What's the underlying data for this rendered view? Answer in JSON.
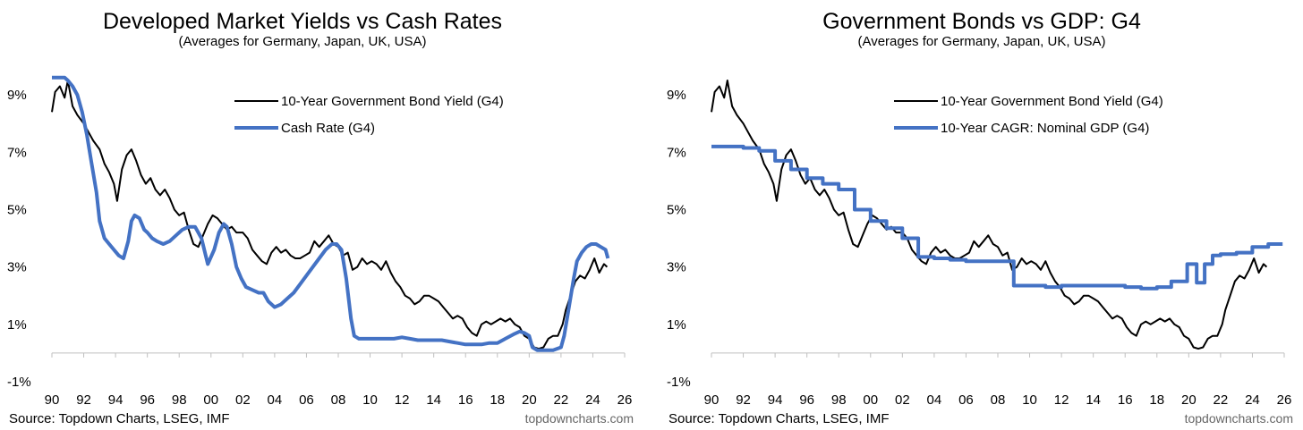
{
  "colors": {
    "bond": "#000000",
    "blue": "#4472C4",
    "axis": "#BFBFBF"
  },
  "chart_data": [
    {
      "type": "line",
      "title": "Developed Market Yields vs Cash Rates",
      "subtitle": "(Averages for Germany, Japan, UK, USA)",
      "source": "Source: Topdown Charts, LSEG, IMF",
      "brand": "topdowncharts.com",
      "ylim": [
        -1,
        10
      ],
      "xlim": [
        1990,
        2026
      ],
      "y_ticks": [
        {
          "v": 9,
          "label": "9%"
        },
        {
          "v": 7,
          "label": "7%"
        },
        {
          "v": 5,
          "label": "5%"
        },
        {
          "v": 3,
          "label": "3%"
        },
        {
          "v": 1,
          "label": "1%"
        },
        {
          "v": -1,
          "label": "-1%"
        }
      ],
      "x_ticks": [
        {
          "v": 1990,
          "label": "90"
        },
        {
          "v": 1992,
          "label": "92"
        },
        {
          "v": 1994,
          "label": "94"
        },
        {
          "v": 1996,
          "label": "96"
        },
        {
          "v": 1998,
          "label": "98"
        },
        {
          "v": 2000,
          "label": "00"
        },
        {
          "v": 2002,
          "label": "02"
        },
        {
          "v": 2004,
          "label": "04"
        },
        {
          "v": 2006,
          "label": "06"
        },
        {
          "v": 2008,
          "label": "08"
        },
        {
          "v": 2010,
          "label": "10"
        },
        {
          "v": 2012,
          "label": "12"
        },
        {
          "v": 2014,
          "label": "14"
        },
        {
          "v": 2016,
          "label": "16"
        },
        {
          "v": 2018,
          "label": "18"
        },
        {
          "v": 2020,
          "label": "20"
        },
        {
          "v": 2022,
          "label": "22"
        },
        {
          "v": 2024,
          "label": "24"
        },
        {
          "v": 2026,
          "label": "26"
        }
      ],
      "legend": [
        "10-Year Government Bond Yield (G4)",
        "Cash Rate (G4)"
      ],
      "series": [
        {
          "name": "10-Year Government Bond Yield (G4)",
          "color": "#000000",
          "width": 2,
          "x": [
            1990.0,
            1990.2,
            1990.5,
            1990.8,
            1991.0,
            1991.3,
            1991.6,
            1992.0,
            1992.3,
            1992.6,
            1993.0,
            1993.3,
            1993.6,
            1993.9,
            1994.1,
            1994.4,
            1994.7,
            1995.0,
            1995.3,
            1995.6,
            1995.9,
            1996.2,
            1996.5,
            1996.8,
            1997.1,
            1997.4,
            1997.7,
            1998.0,
            1998.3,
            1998.6,
            1998.9,
            1999.2,
            1999.5,
            1999.8,
            2000.1,
            2000.4,
            2000.7,
            2001.0,
            2001.3,
            2001.6,
            2002.0,
            2002.3,
            2002.6,
            2002.9,
            2003.2,
            2003.5,
            2003.8,
            2004.1,
            2004.4,
            2004.7,
            2005.0,
            2005.3,
            2005.6,
            2005.9,
            2006.2,
            2006.5,
            2006.8,
            2007.1,
            2007.4,
            2007.7,
            2008.0,
            2008.3,
            2008.6,
            2008.9,
            2009.2,
            2009.5,
            2009.8,
            2010.1,
            2010.4,
            2010.7,
            2011.0,
            2011.3,
            2011.6,
            2011.9,
            2012.2,
            2012.5,
            2012.8,
            2013.1,
            2013.4,
            2013.7,
            2014.0,
            2014.3,
            2014.6,
            2014.9,
            2015.2,
            2015.5,
            2015.8,
            2016.1,
            2016.4,
            2016.7,
            2017.0,
            2017.3,
            2017.6,
            2017.9,
            2018.2,
            2018.5,
            2018.8,
            2019.1,
            2019.4,
            2019.7,
            2020.0,
            2020.3,
            2020.6,
            2020.9,
            2021.2,
            2021.5,
            2021.8,
            2022.1,
            2022.3,
            2022.6,
            2022.9,
            2023.2,
            2023.5,
            2023.8,
            2024.1,
            2024.4,
            2024.7,
            2024.9
          ],
          "values": [
            8.4,
            9.1,
            9.3,
            8.9,
            9.5,
            8.6,
            8.3,
            8.0,
            7.7,
            7.4,
            7.1,
            6.6,
            6.3,
            5.9,
            5.3,
            6.4,
            6.9,
            7.1,
            6.7,
            6.2,
            5.9,
            6.1,
            5.7,
            5.5,
            5.7,
            5.4,
            5.0,
            4.8,
            4.9,
            4.3,
            3.8,
            3.7,
            4.1,
            4.5,
            4.8,
            4.7,
            4.5,
            4.3,
            4.4,
            4.2,
            4.2,
            4.0,
            3.6,
            3.4,
            3.2,
            3.1,
            3.5,
            3.7,
            3.5,
            3.6,
            3.4,
            3.3,
            3.3,
            3.4,
            3.5,
            3.9,
            3.7,
            3.9,
            4.1,
            3.8,
            3.7,
            3.4,
            3.5,
            2.9,
            3.0,
            3.3,
            3.1,
            3.2,
            3.1,
            2.9,
            3.2,
            2.8,
            2.5,
            2.3,
            2.0,
            1.9,
            1.7,
            1.8,
            2.0,
            2.0,
            1.9,
            1.8,
            1.6,
            1.4,
            1.2,
            1.3,
            1.2,
            0.9,
            0.7,
            0.6,
            1.0,
            1.1,
            1.0,
            1.1,
            1.2,
            1.1,
            1.2,
            1.0,
            0.9,
            0.6,
            0.5,
            0.2,
            0.15,
            0.2,
            0.5,
            0.6,
            0.6,
            1.0,
            1.5,
            2.0,
            2.5,
            2.7,
            2.6,
            2.9,
            3.3,
            2.8,
            3.1,
            3.0
          ]
        },
        {
          "name": "Cash Rate (G4)",
          "color": "#4472C4",
          "width": 4,
          "x": [
            1990.0,
            1990.5,
            1990.8,
            1991.0,
            1991.3,
            1991.6,
            1991.9,
            1992.2,
            1992.5,
            1992.8,
            1993.0,
            1993.3,
            1993.6,
            1993.9,
            1994.2,
            1994.5,
            1994.8,
            1995.0,
            1995.2,
            1995.5,
            1995.8,
            1996.0,
            1996.3,
            1996.6,
            1997.0,
            1997.4,
            1997.8,
            1998.2,
            1998.6,
            1999.0,
            1999.4,
            1999.8,
            2000.2,
            2000.5,
            2000.8,
            2001.0,
            2001.3,
            2001.6,
            2001.9,
            2002.2,
            2002.6,
            2003.0,
            2003.3,
            2003.6,
            2004.0,
            2004.4,
            2004.8,
            2005.2,
            2005.6,
            2006.0,
            2006.4,
            2006.8,
            2007.2,
            2007.6,
            2007.9,
            2008.2,
            2008.5,
            2008.8,
            2009.0,
            2009.3,
            2009.6,
            2010.0,
            2010.5,
            2011.0,
            2011.5,
            2012.0,
            2012.5,
            2013.0,
            2013.5,
            2014.0,
            2014.5,
            2015.0,
            2015.5,
            2016.0,
            2016.5,
            2017.0,
            2017.5,
            2018.0,
            2018.5,
            2019.0,
            2019.4,
            2019.7,
            2020.0,
            2020.2,
            2020.5,
            2021.0,
            2021.5,
            2022.0,
            2022.2,
            2022.5,
            2022.8,
            2023.0,
            2023.3,
            2023.6,
            2023.9,
            2024.2,
            2024.5,
            2024.8,
            2024.95
          ],
          "values": [
            9.6,
            9.6,
            9.6,
            9.5,
            9.3,
            9.0,
            8.4,
            7.6,
            6.6,
            5.6,
            4.6,
            4.0,
            3.8,
            3.6,
            3.4,
            3.3,
            3.9,
            4.6,
            4.8,
            4.7,
            4.3,
            4.2,
            4.0,
            3.9,
            3.8,
            3.9,
            4.1,
            4.3,
            4.4,
            4.4,
            4.0,
            3.1,
            3.6,
            4.2,
            4.5,
            4.4,
            3.8,
            3.0,
            2.6,
            2.3,
            2.2,
            2.1,
            2.1,
            1.8,
            1.6,
            1.7,
            1.9,
            2.1,
            2.4,
            2.7,
            3.0,
            3.3,
            3.6,
            3.8,
            3.8,
            3.6,
            2.6,
            1.2,
            0.6,
            0.5,
            0.5,
            0.5,
            0.5,
            0.5,
            0.5,
            0.55,
            0.5,
            0.45,
            0.45,
            0.45,
            0.45,
            0.4,
            0.35,
            0.3,
            0.3,
            0.3,
            0.35,
            0.35,
            0.5,
            0.65,
            0.75,
            0.7,
            0.6,
            0.2,
            0.1,
            0.1,
            0.1,
            0.2,
            0.6,
            1.6,
            2.6,
            3.2,
            3.5,
            3.7,
            3.8,
            3.8,
            3.7,
            3.6,
            3.3
          ]
        }
      ]
    },
    {
      "type": "line",
      "title": "Government Bonds vs GDP: G4",
      "subtitle": "(Averages for Germany, Japan, UK, USA)",
      "source": "Source: Topdown Charts, LSEG, IMF",
      "brand": "topdowncharts.com",
      "ylim": [
        -1,
        10
      ],
      "xlim": [
        1990,
        2026
      ],
      "y_ticks": [
        {
          "v": 9,
          "label": "9%"
        },
        {
          "v": 7,
          "label": "7%"
        },
        {
          "v": 5,
          "label": "5%"
        },
        {
          "v": 3,
          "label": "3%"
        },
        {
          "v": 1,
          "label": "1%"
        },
        {
          "v": -1,
          "label": "-1%"
        }
      ],
      "x_ticks": [
        {
          "v": 1990,
          "label": "90"
        },
        {
          "v": 1992,
          "label": "92"
        },
        {
          "v": 1994,
          "label": "94"
        },
        {
          "v": 1996,
          "label": "96"
        },
        {
          "v": 1998,
          "label": "98"
        },
        {
          "v": 2000,
          "label": "00"
        },
        {
          "v": 2002,
          "label": "02"
        },
        {
          "v": 2004,
          "label": "04"
        },
        {
          "v": 2006,
          "label": "06"
        },
        {
          "v": 2008,
          "label": "08"
        },
        {
          "v": 2010,
          "label": "10"
        },
        {
          "v": 2012,
          "label": "12"
        },
        {
          "v": 2014,
          "label": "14"
        },
        {
          "v": 2016,
          "label": "16"
        },
        {
          "v": 2018,
          "label": "18"
        },
        {
          "v": 2020,
          "label": "20"
        },
        {
          "v": 2022,
          "label": "22"
        },
        {
          "v": 2024,
          "label": "24"
        },
        {
          "v": 2026,
          "label": "26"
        }
      ],
      "legend": [
        "10-Year Government Bond Yield (G4)",
        "10-Year CAGR: Nominal GDP (G4)"
      ],
      "series": [
        {
          "name": "10-Year Government Bond Yield (G4)",
          "color": "#000000",
          "width": 2,
          "x": [
            1990.0,
            1990.2,
            1990.5,
            1990.8,
            1991.0,
            1991.3,
            1991.6,
            1992.0,
            1992.3,
            1992.6,
            1993.0,
            1993.3,
            1993.6,
            1993.9,
            1994.1,
            1994.4,
            1994.7,
            1995.0,
            1995.3,
            1995.6,
            1995.9,
            1996.2,
            1996.5,
            1996.8,
            1997.1,
            1997.4,
            1997.7,
            1998.0,
            1998.3,
            1998.6,
            1998.9,
            1999.2,
            1999.5,
            1999.8,
            2000.1,
            2000.4,
            2000.7,
            2001.0,
            2001.3,
            2001.6,
            2002.0,
            2002.3,
            2002.6,
            2002.9,
            2003.2,
            2003.5,
            2003.8,
            2004.1,
            2004.4,
            2004.7,
            2005.0,
            2005.3,
            2005.6,
            2005.9,
            2006.2,
            2006.5,
            2006.8,
            2007.1,
            2007.4,
            2007.7,
            2008.0,
            2008.3,
            2008.6,
            2008.9,
            2009.2,
            2009.5,
            2009.8,
            2010.1,
            2010.4,
            2010.7,
            2011.0,
            2011.3,
            2011.6,
            2011.9,
            2012.2,
            2012.5,
            2012.8,
            2013.1,
            2013.4,
            2013.7,
            2014.0,
            2014.3,
            2014.6,
            2014.9,
            2015.2,
            2015.5,
            2015.8,
            2016.1,
            2016.4,
            2016.7,
            2017.0,
            2017.3,
            2017.6,
            2017.9,
            2018.2,
            2018.5,
            2018.8,
            2019.1,
            2019.4,
            2019.7,
            2020.0,
            2020.3,
            2020.6,
            2020.9,
            2021.2,
            2021.5,
            2021.8,
            2022.1,
            2022.3,
            2022.6,
            2022.9,
            2023.2,
            2023.5,
            2023.8,
            2024.1,
            2024.4,
            2024.7,
            2024.9
          ],
          "values": [
            8.4,
            9.1,
            9.3,
            8.9,
            9.5,
            8.6,
            8.3,
            8.0,
            7.7,
            7.4,
            7.1,
            6.6,
            6.3,
            5.9,
            5.3,
            6.4,
            6.9,
            7.1,
            6.7,
            6.2,
            5.9,
            6.1,
            5.7,
            5.5,
            5.7,
            5.4,
            5.0,
            4.8,
            4.9,
            4.3,
            3.8,
            3.7,
            4.1,
            4.5,
            4.8,
            4.7,
            4.5,
            4.3,
            4.4,
            4.2,
            4.2,
            4.0,
            3.6,
            3.4,
            3.2,
            3.1,
            3.5,
            3.7,
            3.5,
            3.6,
            3.4,
            3.3,
            3.3,
            3.4,
            3.5,
            3.9,
            3.7,
            3.9,
            4.1,
            3.8,
            3.7,
            3.4,
            3.5,
            2.9,
            3.0,
            3.3,
            3.1,
            3.2,
            3.1,
            2.9,
            3.2,
            2.8,
            2.5,
            2.3,
            2.0,
            1.9,
            1.7,
            1.8,
            2.0,
            2.0,
            1.9,
            1.8,
            1.6,
            1.4,
            1.2,
            1.3,
            1.2,
            0.9,
            0.7,
            0.6,
            1.0,
            1.1,
            1.0,
            1.1,
            1.2,
            1.1,
            1.2,
            1.0,
            0.9,
            0.6,
            0.5,
            0.2,
            0.15,
            0.2,
            0.5,
            0.6,
            0.6,
            1.0,
            1.5,
            2.0,
            2.5,
            2.7,
            2.6,
            2.9,
            3.3,
            2.8,
            3.1,
            3.0
          ]
        },
        {
          "name": "10-Year CAGR: Nominal GDP (G4)",
          "color": "#4472C4",
          "width": 4,
          "step": true,
          "x": [
            1990.0,
            1991.0,
            1992.0,
            1993.0,
            1994.0,
            1995.0,
            1996.0,
            1997.0,
            1998.0,
            1999.0,
            2000.0,
            2001.0,
            2002.0,
            2003.0,
            2004.0,
            2005.0,
            2006.0,
            2007.0,
            2008.0,
            2009.0,
            2010.0,
            2011.0,
            2012.0,
            2013.0,
            2014.0,
            2015.0,
            2016.0,
            2017.0,
            2018.0,
            2018.9,
            2019.9,
            2020.5,
            2021.0,
            2021.5,
            2022.0,
            2023.0,
            2024.0,
            2025.0,
            2025.9
          ],
          "values": [
            7.2,
            7.2,
            7.15,
            7.05,
            6.7,
            6.4,
            6.1,
            5.9,
            5.7,
            5.0,
            4.6,
            4.35,
            4.0,
            3.35,
            3.3,
            3.25,
            3.2,
            3.2,
            3.2,
            2.35,
            2.35,
            2.3,
            2.35,
            2.35,
            2.35,
            2.35,
            2.3,
            2.25,
            2.3,
            2.5,
            3.1,
            2.45,
            3.1,
            3.4,
            3.45,
            3.5,
            3.7,
            3.8,
            3.8
          ]
        }
      ]
    }
  ]
}
